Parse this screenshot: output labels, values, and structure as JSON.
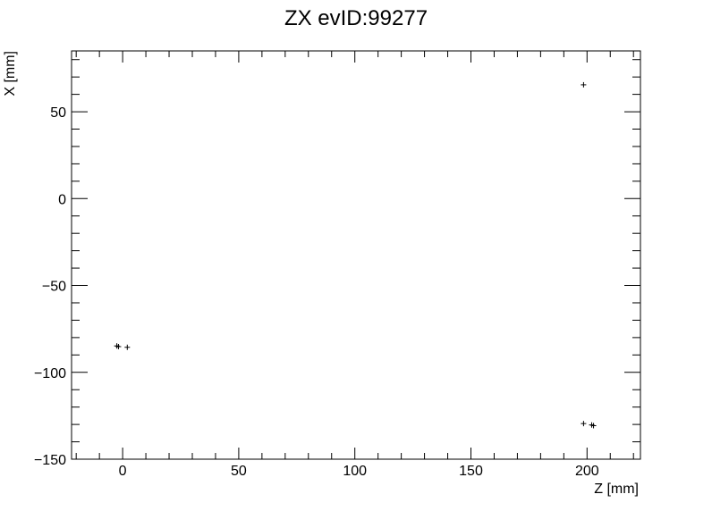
{
  "chart_data": {
    "type": "scatter",
    "title": "ZX evID:99277",
    "xlabel": "Z [mm]",
    "ylabel": "X [mm]",
    "xlim": [
      -22,
      223
    ],
    "ylim": [
      -150,
      85
    ],
    "grid": false,
    "x_ticks": [
      0,
      50,
      100,
      150,
      200
    ],
    "x_tick_labels": [
      "0",
      "50",
      "100",
      "150",
      "200"
    ],
    "y_ticks": [
      -150,
      -100,
      -50,
      0,
      50
    ],
    "y_tick_labels": [
      "−150",
      "−100",
      "−50",
      "0",
      "50"
    ],
    "marker": "+",
    "marker_color": "#000000",
    "series": [
      {
        "points": [
          {
            "x": -2.5,
            "y": -84.8
          },
          {
            "x": -1.8,
            "y": -85.2
          },
          {
            "x": 2.0,
            "y": -85.6
          },
          {
            "x": 198.5,
            "y": 65.5
          },
          {
            "x": 198.5,
            "y": -129.5
          },
          {
            "x": 202.0,
            "y": -130.3
          },
          {
            "x": 202.8,
            "y": -130.7
          }
        ]
      }
    ]
  }
}
